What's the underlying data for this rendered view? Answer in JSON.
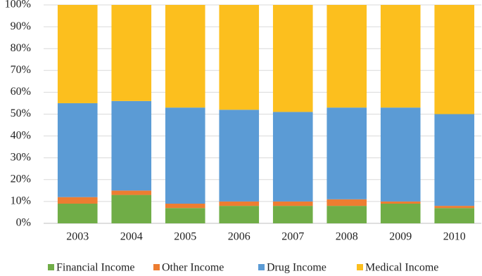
{
  "chart_data": {
    "type": "stacked_bar_percent",
    "categories": [
      "2003",
      "2004",
      "2005",
      "2006",
      "2007",
      "2008",
      "2009",
      "2010"
    ],
    "series": [
      {
        "name": "Financial Income",
        "color": "#70ad47",
        "values": [
          9,
          13,
          7,
          8,
          8,
          8,
          9,
          7
        ]
      },
      {
        "name": "Other Income",
        "color": "#ed7d31",
        "values": [
          3,
          2,
          2,
          2,
          2,
          3,
          1,
          1
        ]
      },
      {
        "name": "Drug Income",
        "color": "#5b9bd5",
        "values": [
          43,
          41,
          44,
          42,
          41,
          42,
          43,
          42
        ]
      },
      {
        "name": "Medical Income",
        "color": "#fcbf1e",
        "values": [
          45,
          44,
          47,
          48,
          49,
          47,
          47,
          50
        ]
      }
    ],
    "ylim": [
      0,
      100
    ],
    "yticks": [
      {
        "value": 0,
        "label": "0%"
      },
      {
        "value": 10,
        "label": "10%"
      },
      {
        "value": 20,
        "label": "20%"
      },
      {
        "value": 30,
        "label": "30%"
      },
      {
        "value": 40,
        "label": "40%"
      },
      {
        "value": 50,
        "label": "50%"
      },
      {
        "value": 60,
        "label": "60%"
      },
      {
        "value": 70,
        "label": "70%"
      },
      {
        "value": 80,
        "label": "80%"
      },
      {
        "value": 90,
        "label": "90%"
      },
      {
        "value": 100,
        "label": "100%"
      }
    ],
    "grid": true,
    "legend": "bottom"
  }
}
